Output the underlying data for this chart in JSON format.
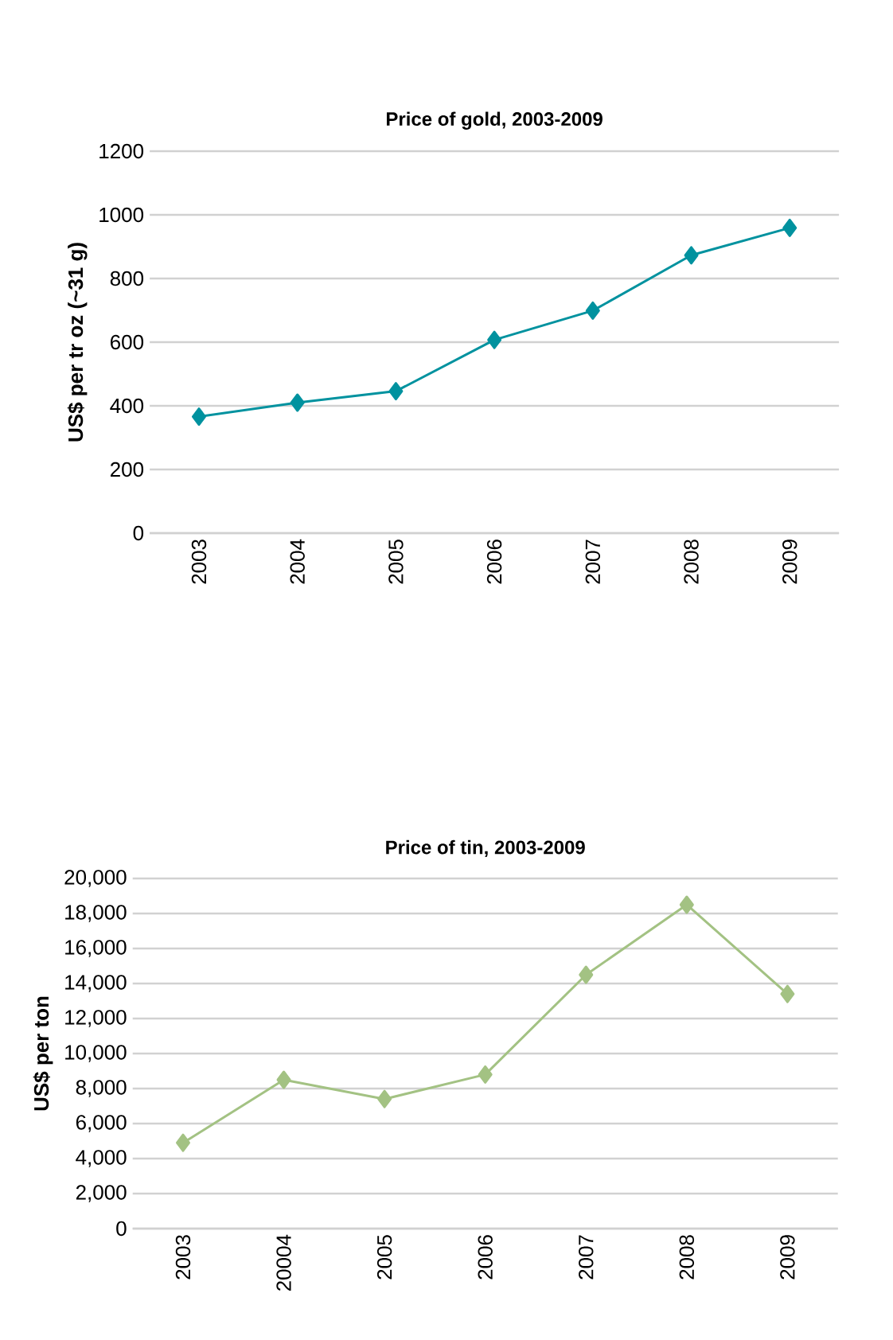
{
  "chart_data": [
    {
      "type": "line",
      "title": "Price of gold, 2003-2009",
      "ylabel": "US$ per tr oz (~31 g)",
      "categories": [
        "2003",
        "2004",
        "2005",
        "2006",
        "2007",
        "2008",
        "2009"
      ],
      "series": [
        {
          "color": "#00929f",
          "values": [
            366,
            410,
            446,
            607,
            699,
            873,
            959
          ]
        }
      ],
      "ylim": [
        0,
        1200
      ],
      "yticks": [
        0,
        200,
        400,
        600,
        800,
        1000,
        1200
      ],
      "grid": "y",
      "marker": "diamond",
      "line_style": "solid"
    },
    {
      "type": "line",
      "title": "Price of tin, 2003-2009",
      "ylabel": "US$ per ton",
      "categories": [
        "2003",
        "20004",
        "2005",
        "2006",
        "2007",
        "2008",
        "2009"
      ],
      "series": [
        {
          "color": "#a3c283",
          "values": [
            4900,
            8500,
            7400,
            8800,
            14500,
            18500,
            13400
          ]
        }
      ],
      "ylim": [
        0,
        20000
      ],
      "yticks": [
        0,
        {
          "value": 2000,
          "label": "2,000"
        },
        {
          "value": 4000,
          "label": "4,000"
        },
        {
          "value": 6000,
          "label": "6,000"
        },
        {
          "value": 8000,
          "label": "8,000"
        },
        {
          "value": 10000,
          "label": "10,000"
        },
        {
          "value": 12000,
          "label": "12,000"
        },
        {
          "value": 14000,
          "label": "14,000"
        },
        {
          "value": 16000,
          "label": "16,000"
        },
        {
          "value": 18000,
          "label": "18,000"
        },
        {
          "value": 20000,
          "label": "20,000"
        }
      ],
      "grid": "y",
      "marker": "diamond",
      "line_style": "solid"
    }
  ]
}
